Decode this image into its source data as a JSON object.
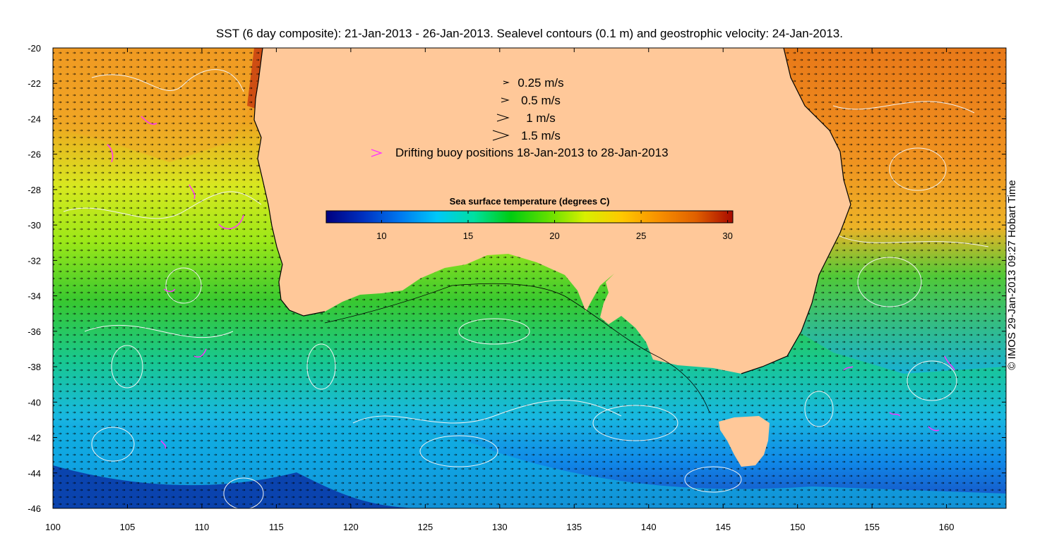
{
  "title": "SST (6 day composite): 21-Jan-2013 - 26-Jan-2013. Sealevel contours (0.1 m) and geostrophic velocity: 24-Jan-2013.",
  "credit": "© IMOS 29-Jan-2013 09:27 Hobart Time",
  "axes": {
    "x": {
      "min": 100,
      "max": 164,
      "ticks": [
        100,
        105,
        110,
        115,
        120,
        125,
        130,
        135,
        140,
        145,
        150,
        155,
        160
      ]
    },
    "y": {
      "min": -46,
      "max": -20,
      "ticks": [
        -20,
        -22,
        -24,
        -26,
        -28,
        -30,
        -32,
        -34,
        -36,
        -38,
        -40,
        -42,
        -44,
        -46
      ]
    }
  },
  "legend": {
    "speeds": [
      {
        "label": "0.25 m/s",
        "value": 0.25
      },
      {
        "label": "0.5 m/s",
        "value": 0.5
      },
      {
        "label": "1 m/s",
        "value": 1
      },
      {
        "label": "1.5 m/s",
        "value": 1.5
      }
    ],
    "buoy_label": "Drifting buoy positions 18-Jan-2013 to 28-Jan-2013",
    "buoy_color": "#ff33ff"
  },
  "colorbar": {
    "label": "Sea surface temperature (degrees C)",
    "min": 6.8,
    "max": 30.3,
    "ticks": [
      "10",
      "15",
      "20",
      "25",
      "30"
    ],
    "colors": [
      "#00007f",
      "#0030c0",
      "#0078f0",
      "#00c8f8",
      "#00e0a0",
      "#00cc10",
      "#60e000",
      "#d8f000",
      "#ffc800",
      "#f89000",
      "#e06000",
      "#a80a00"
    ]
  },
  "colors": {
    "land": "#ffc899",
    "contour": "#f2f2f2",
    "vector": "#000000"
  }
}
